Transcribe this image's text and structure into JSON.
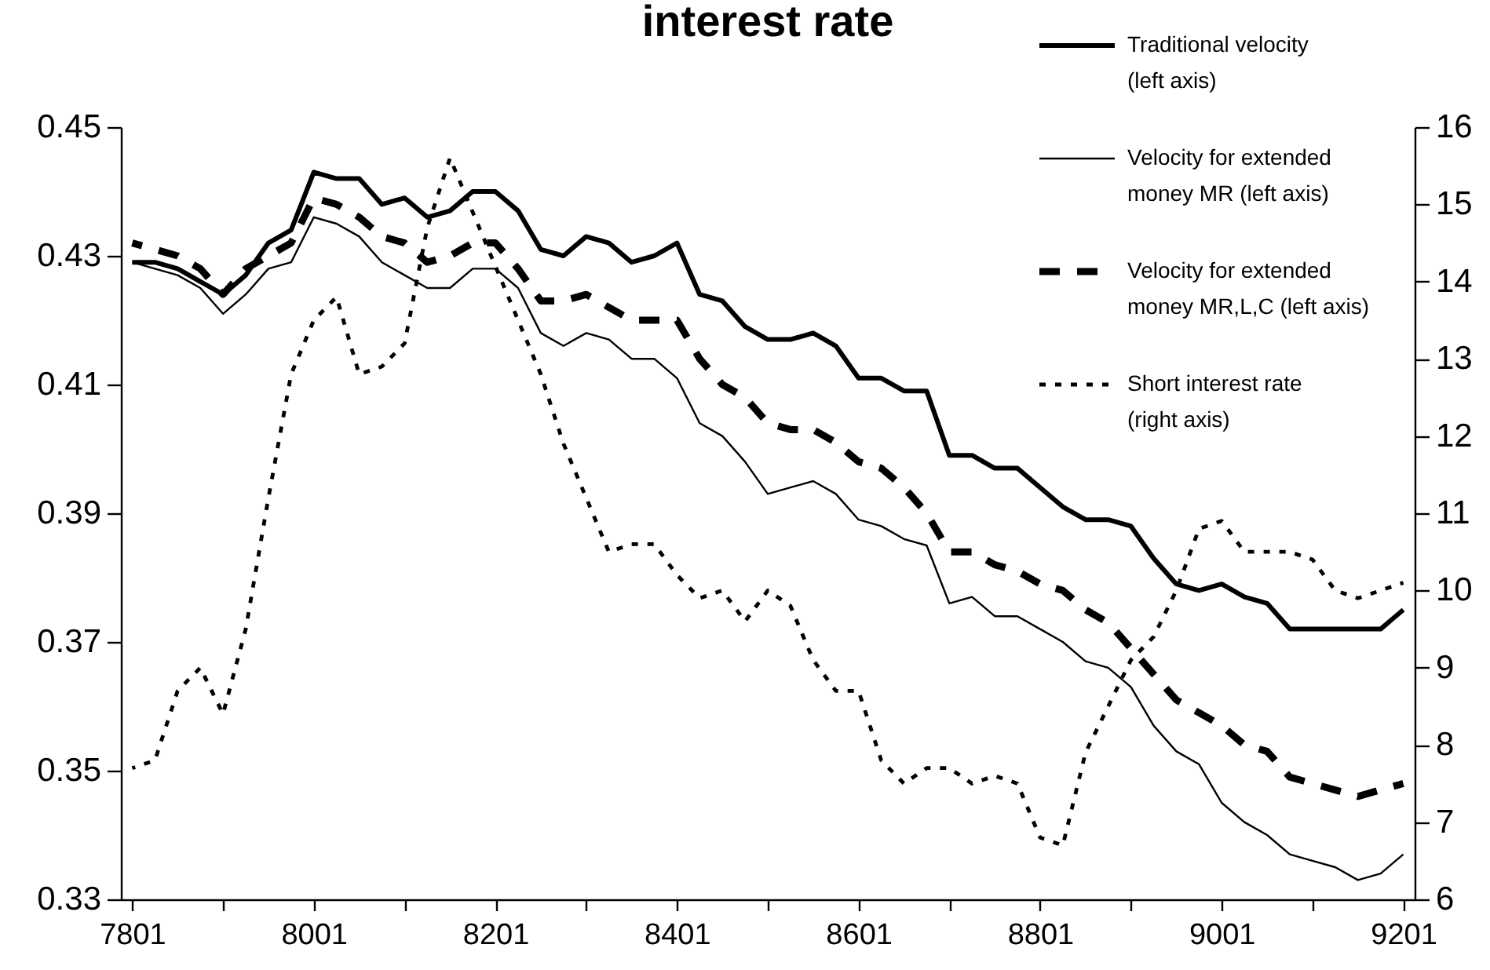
{
  "chart_data": {
    "type": "line",
    "title": "interest rate",
    "categories": [
      "7801",
      null,
      null,
      null,
      null,
      null,
      null,
      null,
      "8001",
      null,
      null,
      null,
      null,
      null,
      null,
      null,
      "8201",
      null,
      null,
      null,
      null,
      null,
      null,
      null,
      "8401",
      null,
      null,
      null,
      null,
      null,
      null,
      null,
      "8601",
      null,
      null,
      null,
      null,
      null,
      null,
      null,
      "8801",
      null,
      null,
      null,
      null,
      null,
      null,
      null,
      "9001",
      null,
      null,
      null,
      null,
      null,
      null,
      null,
      "9201"
    ],
    "ylim": [
      0.33,
      0.45
    ],
    "yticks": [
      0.33,
      0.35,
      0.37,
      0.39,
      0.41,
      0.43,
      0.45
    ],
    "y2lim": [
      6,
      16
    ],
    "y2ticks": [
      6,
      7,
      8,
      9,
      10,
      11,
      12,
      13,
      14,
      15,
      16
    ],
    "legend": "top right",
    "series": [
      {
        "name": "Traditional velocity (left axis)",
        "color": "#000000",
        "line_style": "solid",
        "values": [
          0.429,
          0.429,
          0.428,
          0.426,
          0.424,
          0.427,
          0.432,
          0.434,
          0.443,
          0.442,
          0.442,
          0.438,
          0.439,
          0.436,
          0.437,
          0.44,
          0.44,
          0.437,
          0.431,
          0.43,
          0.433,
          0.432,
          0.429,
          0.43,
          0.432,
          0.424,
          0.423,
          0.419,
          0.417,
          0.417,
          0.418,
          0.416,
          0.411,
          0.411,
          0.409,
          0.409,
          0.399,
          0.399,
          0.397,
          0.397,
          0.394,
          0.391,
          0.389,
          0.389,
          0.388,
          0.383,
          0.379,
          0.378,
          0.379,
          0.377,
          0.376,
          0.372,
          0.372,
          0.372,
          0.372,
          0.372,
          0.375
        ]
      },
      {
        "name": "Velocity for extended money MR (left axis)",
        "color": "#000000",
        "line_style": "solid",
        "values": [
          0.429,
          0.428,
          0.427,
          0.425,
          0.421,
          0.424,
          0.428,
          0.429,
          0.436,
          0.435,
          0.433,
          0.429,
          0.427,
          0.425,
          0.425,
          0.428,
          0.428,
          0.425,
          0.418,
          0.416,
          0.418,
          0.417,
          0.414,
          0.414,
          0.411,
          0.404,
          0.402,
          0.398,
          0.393,
          0.394,
          0.395,
          0.393,
          0.389,
          0.388,
          0.386,
          0.385,
          0.376,
          0.377,
          0.374,
          0.374,
          0.372,
          0.37,
          0.367,
          0.366,
          0.363,
          0.357,
          0.353,
          0.351,
          0.345,
          0.342,
          0.34,
          0.337,
          0.336,
          0.335,
          0.333,
          0.334,
          0.337
        ]
      },
      {
        "name": "Velocity for extended money MR,L,C (left axis)",
        "color": "#000000",
        "line_style": "dashed",
        "values": [
          0.432,
          0.431,
          0.43,
          0.428,
          0.424,
          0.428,
          0.43,
          0.432,
          0.439,
          0.438,
          0.436,
          0.433,
          0.432,
          0.429,
          0.43,
          0.432,
          0.432,
          0.428,
          0.423,
          0.423,
          0.424,
          0.422,
          0.42,
          0.42,
          0.42,
          0.414,
          0.41,
          0.408,
          0.404,
          0.403,
          0.403,
          0.401,
          0.398,
          0.397,
          0.394,
          0.39,
          0.384,
          0.384,
          0.382,
          0.381,
          0.379,
          0.378,
          0.375,
          0.373,
          0.369,
          0.365,
          0.361,
          0.359,
          0.357,
          0.354,
          0.353,
          0.349,
          0.348,
          0.347,
          0.346,
          0.347,
          0.348
        ]
      },
      {
        "name": "Short interest rate (right axis)",
        "color": "#000000",
        "line_style": "dotted",
        "axis": "y2",
        "values": [
          7.7,
          7.8,
          8.7,
          9.0,
          8.4,
          9.5,
          11.2,
          12.8,
          13.5,
          13.8,
          12.8,
          12.9,
          13.2,
          14.7,
          15.6,
          14.9,
          14.2,
          13.5,
          12.8,
          11.9,
          11.2,
          10.5,
          10.6,
          10.6,
          10.2,
          9.9,
          10.0,
          9.6,
          10.0,
          9.8,
          9.1,
          8.7,
          8.7,
          7.8,
          7.5,
          7.7,
          7.7,
          7.5,
          7.6,
          7.5,
          6.8,
          6.7,
          7.9,
          8.5,
          9.1,
          9.4,
          10.0,
          10.8,
          10.9,
          10.5,
          10.5,
          10.5,
          10.4,
          10.0,
          9.9,
          10.0,
          10.1
        ]
      }
    ]
  }
}
